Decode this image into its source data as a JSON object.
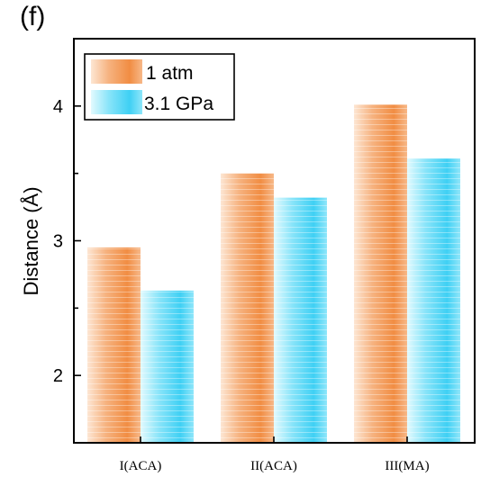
{
  "panel_label": "(f)",
  "colors": {
    "series_1_light": "#fbd9bd",
    "series_1_dark": "#f18d43",
    "series_2_light": "#d6f6fd",
    "series_2_dark": "#3fd0f4"
  },
  "chart_data": {
    "type": "bar",
    "categories": [
      "I(ACA)",
      "II(ACA)",
      "III(MA)"
    ],
    "series": [
      {
        "name": "1 atm",
        "values": [
          2.95,
          3.5,
          4.01
        ]
      },
      {
        "name": "3.1 GPa",
        "values": [
          2.63,
          3.32,
          3.61
        ]
      }
    ],
    "ylabel": "Distance (Å)",
    "xlabel": "",
    "ylim": [
      1.5,
      4.5
    ],
    "yticks": [
      "2",
      "3",
      "4"
    ],
    "legend": "top-left",
    "grid": false
  }
}
